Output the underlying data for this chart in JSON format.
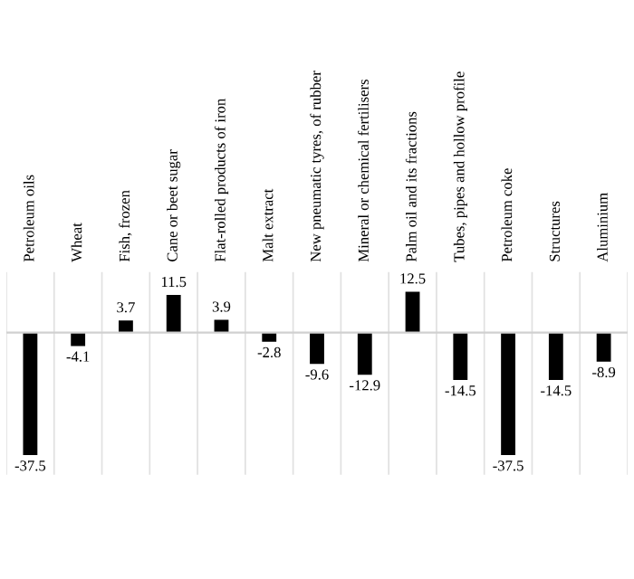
{
  "chart_data": {
    "type": "bar",
    "categories": [
      "Petroleum oils",
      "Wheat",
      "Fish, frozen",
      "Cane or beet sugar",
      "Flat-rolled products of iron",
      "Malt extract",
      "New pneumatic tyres, of rubber",
      "Mineral or chemical fertilisers",
      "Palm oil and its fractions",
      "Tubes, pipes and hollow profile",
      "Petroleum coke",
      "Structures",
      "Aluminium"
    ],
    "values": [
      -37.5,
      -4.1,
      3.7,
      11.5,
      3.9,
      -2.8,
      -9.6,
      -12.9,
      12.5,
      -14.5,
      -37.5,
      -14.5,
      -8.9
    ],
    "color": "#000000",
    "data_labels": true,
    "grid": "x"
  }
}
